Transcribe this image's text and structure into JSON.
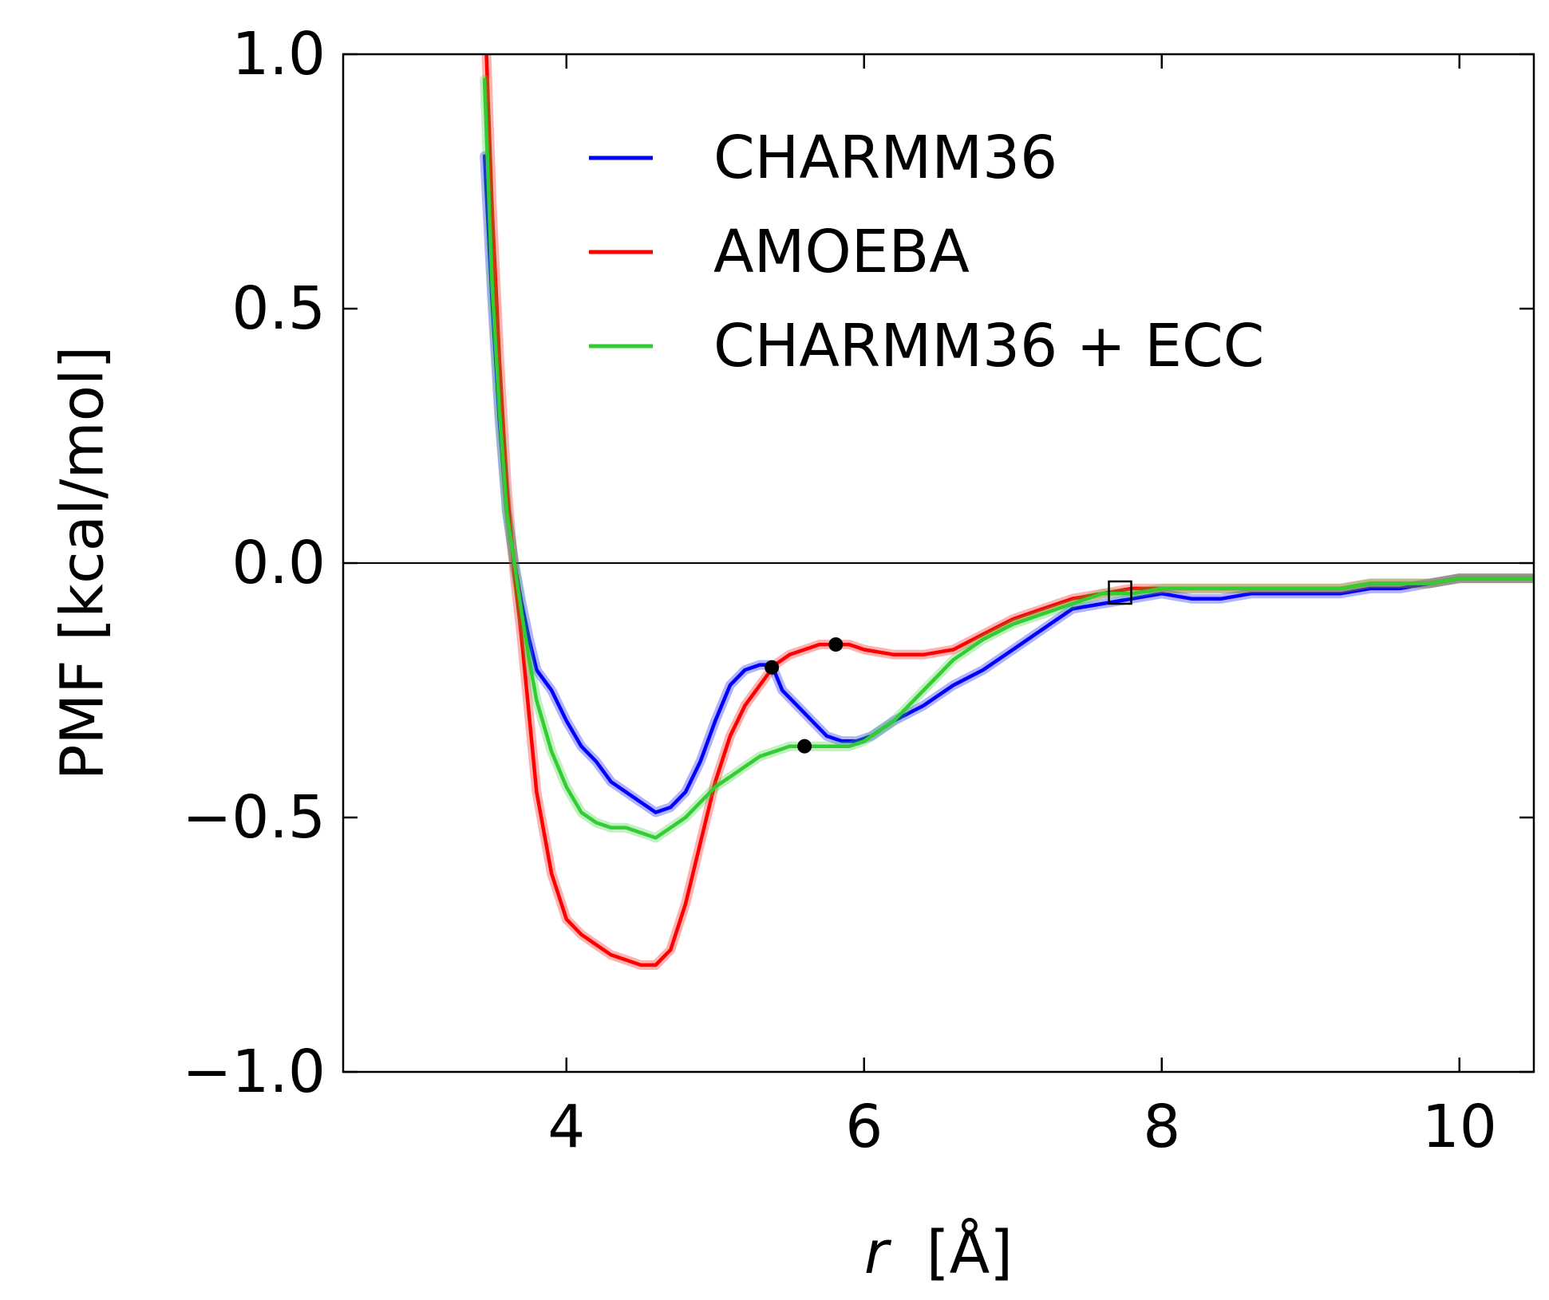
{
  "chart_data": {
    "type": "line",
    "xlabel_italic": "r",
    "xlabel_unit": "[Å]",
    "ylabel": "PMF [kcal/mol]",
    "xlim": [
      2.5,
      10.5
    ],
    "ylim": [
      -1.0,
      1.0
    ],
    "x_ticks": [
      4,
      6,
      8,
      10
    ],
    "x_tick_labels": [
      "4",
      "6",
      "8",
      "10"
    ],
    "y_ticks": [
      -1.0,
      -0.5,
      0.0,
      0.5,
      1.0
    ],
    "y_tick_labels": [
      "−1.0",
      "−0.5",
      "0.0",
      "0.5",
      "1.0"
    ],
    "zero_line": true,
    "grid": false,
    "legend_position": "top-right",
    "series": [
      {
        "name": "CHARMM36",
        "color": "#0000ff",
        "x": [
          3.45,
          3.5,
          3.55,
          3.6,
          3.65,
          3.7,
          3.75,
          3.8,
          3.9,
          4.0,
          4.1,
          4.2,
          4.3,
          4.4,
          4.5,
          4.6,
          4.7,
          4.8,
          4.9,
          5.0,
          5.1,
          5.2,
          5.3,
          5.38,
          5.45,
          5.55,
          5.65,
          5.75,
          5.85,
          5.95,
          6.05,
          6.2,
          6.4,
          6.6,
          6.8,
          7.0,
          7.2,
          7.4,
          7.6,
          7.8,
          8.0,
          8.2,
          8.4,
          8.6,
          8.8,
          9.0,
          9.2,
          9.4,
          9.6,
          9.8,
          10.0,
          10.2,
          10.5
        ],
        "y": [
          0.8,
          0.52,
          0.28,
          0.1,
          0.0,
          -0.08,
          -0.15,
          -0.21,
          -0.25,
          -0.31,
          -0.36,
          -0.39,
          -0.43,
          -0.45,
          -0.47,
          -0.49,
          -0.48,
          -0.45,
          -0.39,
          -0.31,
          -0.24,
          -0.21,
          -0.2,
          -0.2,
          -0.25,
          -0.28,
          -0.31,
          -0.34,
          -0.35,
          -0.35,
          -0.34,
          -0.31,
          -0.28,
          -0.24,
          -0.21,
          -0.17,
          -0.13,
          -0.09,
          -0.08,
          -0.07,
          -0.06,
          -0.07,
          -0.07,
          -0.06,
          -0.06,
          -0.06,
          -0.06,
          -0.05,
          -0.05,
          -0.04,
          -0.03,
          -0.03,
          -0.03
        ]
      },
      {
        "name": "AMOEBA",
        "color": "#ff0000",
        "x": [
          3.45,
          3.5,
          3.55,
          3.6,
          3.65,
          3.7,
          3.75,
          3.8,
          3.9,
          4.0,
          4.1,
          4.2,
          4.3,
          4.4,
          4.5,
          4.6,
          4.7,
          4.8,
          4.9,
          5.0,
          5.1,
          5.2,
          5.3,
          5.4,
          5.5,
          5.6,
          5.7,
          5.8,
          5.9,
          6.0,
          6.2,
          6.4,
          6.6,
          6.8,
          7.0,
          7.2,
          7.4,
          7.6,
          7.8,
          8.0,
          8.2,
          8.4,
          8.6,
          8.8,
          9.0,
          9.2,
          9.4,
          9.6,
          9.8,
          10.0,
          10.2,
          10.5
        ],
        "y": [
          1.1,
          0.7,
          0.4,
          0.15,
          -0.02,
          -0.15,
          -0.3,
          -0.45,
          -0.61,
          -0.7,
          -0.73,
          -0.75,
          -0.77,
          -0.78,
          -0.79,
          -0.79,
          -0.76,
          -0.67,
          -0.55,
          -0.43,
          -0.34,
          -0.28,
          -0.24,
          -0.2,
          -0.18,
          -0.17,
          -0.16,
          -0.16,
          -0.16,
          -0.17,
          -0.18,
          -0.18,
          -0.17,
          -0.14,
          -0.11,
          -0.09,
          -0.07,
          -0.06,
          -0.05,
          -0.05,
          -0.05,
          -0.05,
          -0.05,
          -0.05,
          -0.05,
          -0.05,
          -0.04,
          -0.04,
          -0.04,
          -0.03,
          -0.03,
          -0.03
        ]
      },
      {
        "name": "CHARMM36 + ECC",
        "color": "#32cd32",
        "x": [
          3.45,
          3.5,
          3.55,
          3.6,
          3.65,
          3.7,
          3.75,
          3.8,
          3.9,
          4.0,
          4.1,
          4.2,
          4.3,
          4.4,
          4.5,
          4.6,
          4.7,
          4.8,
          4.9,
          5.0,
          5.1,
          5.2,
          5.3,
          5.4,
          5.5,
          5.6,
          5.7,
          5.8,
          5.9,
          6.0,
          6.2,
          6.4,
          6.6,
          6.8,
          7.0,
          7.2,
          7.4,
          7.6,
          7.8,
          8.0,
          8.2,
          8.4,
          8.6,
          8.8,
          9.0,
          9.2,
          9.4,
          9.6,
          9.8,
          10.0,
          10.2,
          10.5
        ],
        "y": [
          0.95,
          0.55,
          0.3,
          0.1,
          0.0,
          -0.1,
          -0.19,
          -0.27,
          -0.37,
          -0.44,
          -0.49,
          -0.51,
          -0.52,
          -0.52,
          -0.53,
          -0.54,
          -0.52,
          -0.5,
          -0.47,
          -0.44,
          -0.42,
          -0.4,
          -0.38,
          -0.37,
          -0.36,
          -0.36,
          -0.36,
          -0.36,
          -0.36,
          -0.35,
          -0.31,
          -0.25,
          -0.19,
          -0.15,
          -0.12,
          -0.1,
          -0.08,
          -0.06,
          -0.06,
          -0.05,
          -0.05,
          -0.05,
          -0.05,
          -0.05,
          -0.05,
          -0.05,
          -0.04,
          -0.04,
          -0.04,
          -0.03,
          -0.03,
          -0.03
        ]
      }
    ],
    "markers": [
      {
        "series": "CHARMM36",
        "shape": "dot",
        "x": 5.38,
        "y": -0.205
      },
      {
        "series": "AMOEBA",
        "shape": "dot",
        "x": 5.81,
        "y": -0.16
      },
      {
        "series": "CHARMM36 + ECC",
        "shape": "dot",
        "x": 5.6,
        "y": -0.36
      },
      {
        "series": "",
        "shape": "square",
        "x": 7.72,
        "y": -0.058
      }
    ]
  }
}
